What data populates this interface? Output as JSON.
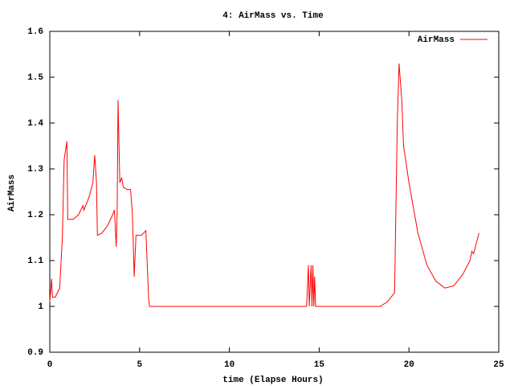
{
  "chart_data": {
    "type": "line",
    "title": "4: AirMass vs. Time",
    "x_label": "time (Elapse Hours)",
    "y_label": "AirMass",
    "x": [
      0,
      0.1,
      0.15,
      0.3,
      0.55,
      0.7,
      0.8,
      0.95,
      1.0,
      1.3,
      1.6,
      1.85,
      1.9,
      2.2,
      2.4,
      2.5,
      2.6,
      2.65,
      2.9,
      3.2,
      3.5,
      3.6,
      3.7,
      3.75,
      3.8,
      3.9,
      4.0,
      4.1,
      4.3,
      4.5,
      4.6,
      4.7,
      4.8,
      5.1,
      5.35,
      5.5,
      5.55,
      14.3,
      14.4,
      14.45,
      14.55,
      14.6,
      14.65,
      14.7,
      14.75,
      14.8,
      18.4,
      18.8,
      19.2,
      19.35,
      19.45,
      19.6,
      19.7,
      20.0,
      20.5,
      21.0,
      21.5,
      22.0,
      22.5,
      23.0,
      23.4,
      23.5,
      23.6,
      23.9
    ],
    "series": [
      {
        "name": "AirMass",
        "color": "#ff0000",
        "values": [
          1.01,
          1.06,
          1.02,
          1.02,
          1.04,
          1.15,
          1.32,
          1.36,
          1.19,
          1.19,
          1.2,
          1.22,
          1.21,
          1.24,
          1.27,
          1.33,
          1.27,
          1.155,
          1.16,
          1.175,
          1.2,
          1.21,
          1.13,
          1.2,
          1.45,
          1.27,
          1.28,
          1.26,
          1.255,
          1.255,
          1.2,
          1.065,
          1.155,
          1.155,
          1.165,
          1.02,
          1.0,
          1.0,
          1.09,
          1.0,
          1.09,
          1.0,
          1.09,
          1.0,
          1.065,
          1.0,
          1.0,
          1.01,
          1.03,
          1.4,
          1.53,
          1.45,
          1.35,
          1.27,
          1.16,
          1.09,
          1.055,
          1.04,
          1.045,
          1.07,
          1.1,
          1.12,
          1.115,
          1.16
        ]
      }
    ],
    "xlim": [
      0,
      25
    ],
    "xticks": [
      0,
      5,
      10,
      15,
      20,
      25
    ],
    "ylim": [
      0.9,
      1.6
    ],
    "yticks": [
      0.9,
      1,
      1.1,
      1.2,
      1.3,
      1.4,
      1.5,
      1.6
    ],
    "grid": false,
    "legend": "top-right"
  }
}
